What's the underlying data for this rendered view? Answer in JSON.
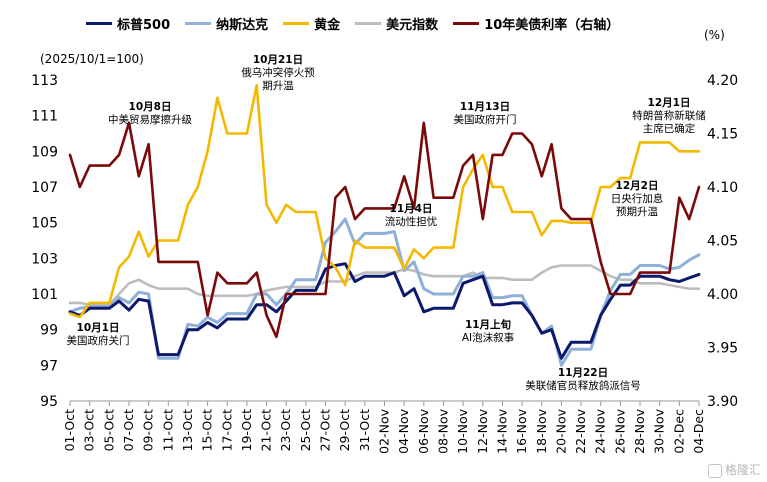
{
  "legend": {
    "series": [
      {
        "name": "标普500",
        "color": "#0b1a6b"
      },
      {
        "name": "纳斯达克",
        "color": "#8fb0d8"
      },
      {
        "name": "黄金",
        "color": "#f5b800"
      },
      {
        "name": "美元指数",
        "color": "#bdbdbd"
      },
      {
        "name": "10年美债利率（右轴）",
        "color": "#7a0a0a"
      }
    ]
  },
  "units": {
    "left": "(2025/10/1=100)",
    "right": "(%)"
  },
  "watermark": {
    "text": "格隆汇",
    "icon": "gelonghui-logo-icon"
  },
  "chart_data": {
    "type": "line",
    "x_tick_labels": [
      "01-Oct",
      "03-Oct",
      "05-Oct",
      "07-Oct",
      "09-Oct",
      "11-Oct",
      "13-Oct",
      "15-Oct",
      "17-Oct",
      "19-Oct",
      "21-Oct",
      "23-Oct",
      "25-Oct",
      "27-Oct",
      "29-Oct",
      "31-Oct",
      "02-Nov",
      "04-Nov",
      "06-Nov",
      "08-Nov",
      "10-Nov",
      "12-Nov",
      "14-Nov",
      "16-Nov",
      "18-Nov",
      "20-Nov",
      "22-Nov",
      "24-Nov",
      "26-Nov",
      "28-Nov",
      "30-Nov",
      "02-Dec",
      "04-Dec"
    ],
    "x": [
      "2025-10-01",
      "2025-10-02",
      "2025-10-03",
      "2025-10-04",
      "2025-10-05",
      "2025-10-06",
      "2025-10-07",
      "2025-10-08",
      "2025-10-09",
      "2025-10-10",
      "2025-10-11",
      "2025-10-12",
      "2025-10-13",
      "2025-10-14",
      "2025-10-15",
      "2025-10-16",
      "2025-10-17",
      "2025-10-18",
      "2025-10-19",
      "2025-10-20",
      "2025-10-21",
      "2025-10-22",
      "2025-10-23",
      "2025-10-24",
      "2025-10-25",
      "2025-10-26",
      "2025-10-27",
      "2025-10-28",
      "2025-10-29",
      "2025-10-30",
      "2025-10-31",
      "2025-11-01",
      "2025-11-02",
      "2025-11-03",
      "2025-11-04",
      "2025-11-05",
      "2025-11-06",
      "2025-11-07",
      "2025-11-08",
      "2025-11-09",
      "2025-11-10",
      "2025-11-11",
      "2025-11-12",
      "2025-11-13",
      "2025-11-14",
      "2025-11-15",
      "2025-11-16",
      "2025-11-17",
      "2025-11-18",
      "2025-11-19",
      "2025-11-20",
      "2025-11-21",
      "2025-11-22",
      "2025-11-23",
      "2025-11-24",
      "2025-11-25",
      "2025-11-26",
      "2025-11-27",
      "2025-11-28",
      "2025-11-29",
      "2025-11-30",
      "2025-12-01",
      "2025-12-02",
      "2025-12-03",
      "2025-12-04"
    ],
    "left_axis": {
      "ylim": [
        95,
        113
      ],
      "ticks": [
        95,
        97,
        99,
        101,
        103,
        105,
        107,
        109,
        111,
        113
      ]
    },
    "right_axis": {
      "ylim": [
        3.9,
        4.2
      ],
      "ticks": [
        "3.90",
        "3.95",
        "4.00",
        "4.05",
        "4.10",
        "4.15",
        "4.20"
      ]
    },
    "series": [
      {
        "name": "标普500",
        "axis": "left",
        "values": [
          100.0,
          99.8,
          100.2,
          100.2,
          100.2,
          100.6,
          100.1,
          100.7,
          100.6,
          97.6,
          97.6,
          97.6,
          99.0,
          99.0,
          99.4,
          99.1,
          99.6,
          99.6,
          99.6,
          100.4,
          100.4,
          100.0,
          100.6,
          101.2,
          101.2,
          101.2,
          102.4,
          102.6,
          102.7,
          101.7,
          102.0,
          102.0,
          102.0,
          102.2,
          100.9,
          101.3,
          100.0,
          100.2,
          100.2,
          100.2,
          101.6,
          101.8,
          102.0,
          100.4,
          100.4,
          100.5,
          100.5,
          99.8,
          98.8,
          99.0,
          97.4,
          98.3,
          98.3,
          98.3,
          99.8,
          100.7,
          101.5,
          101.5,
          102.0,
          102.0,
          102.0,
          101.8,
          101.7,
          101.9,
          102.1
        ]
      },
      {
        "name": "纳斯达克",
        "axis": "left",
        "values": [
          100.0,
          100.2,
          100.3,
          100.3,
          100.3,
          100.8,
          100.5,
          101.1,
          101.0,
          97.4,
          97.4,
          97.4,
          99.3,
          99.2,
          99.7,
          99.4,
          99.9,
          99.9,
          99.9,
          101.0,
          101.0,
          100.4,
          101.0,
          101.8,
          101.8,
          101.8,
          103.9,
          104.5,
          105.2,
          103.8,
          104.4,
          104.4,
          104.4,
          104.5,
          102.3,
          102.8,
          101.3,
          101.0,
          101.0,
          101.0,
          102.0,
          102.0,
          102.2,
          100.8,
          100.8,
          100.9,
          100.9,
          99.8,
          98.8,
          99.2,
          97.0,
          97.9,
          97.9,
          97.9,
          99.8,
          101.2,
          102.1,
          102.1,
          102.6,
          102.6,
          102.6,
          102.4,
          102.5,
          102.9,
          103.2
        ]
      },
      {
        "name": "黄金",
        "axis": "left",
        "values": [
          99.9,
          99.7,
          100.5,
          100.5,
          100.5,
          102.5,
          103.1,
          104.5,
          103.1,
          104.0,
          104.0,
          104.0,
          106.0,
          107.0,
          109.0,
          112.0,
          110.0,
          110.0,
          110.0,
          112.7,
          106.0,
          105.0,
          106.0,
          105.6,
          105.6,
          105.6,
          103.0,
          102.5,
          101.5,
          104.0,
          103.6,
          103.6,
          103.6,
          103.6,
          102.4,
          103.5,
          103.0,
          103.6,
          103.6,
          103.6,
          107.0,
          108.0,
          108.8,
          107.0,
          107.0,
          105.6,
          105.6,
          105.6,
          104.3,
          105.1,
          105.1,
          105.0,
          105.0,
          105.0,
          107.0,
          107.0,
          107.5,
          107.5,
          109.5,
          109.5,
          109.5,
          109.5,
          109.0,
          109.0,
          109.0
        ]
      },
      {
        "name": "美元指数",
        "axis": "left",
        "values": [
          100.5,
          100.5,
          100.4,
          100.4,
          100.4,
          101.0,
          101.6,
          101.8,
          101.5,
          101.3,
          101.3,
          101.3,
          101.3,
          101.0,
          100.9,
          100.9,
          100.9,
          100.9,
          100.9,
          101.0,
          101.2,
          101.3,
          101.4,
          101.4,
          101.4,
          101.4,
          101.7,
          101.7,
          101.7,
          102.0,
          102.2,
          102.2,
          102.2,
          102.2,
          102.4,
          102.3,
          102.1,
          102.0,
          102.0,
          102.0,
          102.0,
          102.2,
          101.9,
          101.9,
          101.9,
          101.8,
          101.8,
          101.8,
          102.2,
          102.5,
          102.6,
          102.6,
          102.6,
          102.6,
          102.3,
          102.0,
          101.8,
          101.8,
          101.6,
          101.6,
          101.6,
          101.5,
          101.4,
          101.3,
          101.3
        ]
      },
      {
        "name": "10年美债利率（右轴）",
        "axis": "right",
        "values": [
          4.13,
          4.1,
          4.12,
          4.12,
          4.12,
          4.13,
          4.16,
          4.11,
          4.14,
          4.03,
          4.03,
          4.03,
          4.03,
          4.03,
          3.98,
          4.02,
          4.01,
          4.01,
          4.01,
          4.02,
          3.98,
          3.96,
          4.0,
          4.0,
          4.0,
          4.0,
          4.0,
          4.09,
          4.1,
          4.07,
          4.08,
          4.08,
          4.08,
          4.08,
          4.11,
          4.08,
          4.16,
          4.09,
          4.09,
          4.09,
          4.12,
          4.13,
          4.07,
          4.13,
          4.13,
          4.15,
          4.15,
          4.14,
          4.11,
          4.14,
          4.08,
          4.07,
          4.07,
          4.07,
          4.03,
          4.0,
          4.0,
          4.0,
          4.02,
          4.02,
          4.02,
          4.02,
          4.09,
          4.07,
          4.1
        ]
      }
    ],
    "annotations": [
      {
        "lines": [
          "10月8日",
          "中美贸易摩擦升级"
        ]
      },
      {
        "lines": [
          "10月21日",
          "俄乌冲突停火预",
          "期升温"
        ]
      },
      {
        "lines": [
          "10月1日",
          "美国政府关门"
        ]
      },
      {
        "lines": [
          "11月4日",
          "流动性担忧"
        ]
      },
      {
        "lines": [
          "11月13日",
          "美国政府开门"
        ]
      },
      {
        "lines": [
          "11月上旬",
          "AI泡沫叙事"
        ]
      },
      {
        "lines": [
          "11月22日",
          "美联储官员释放鸽派信号"
        ]
      },
      {
        "lines": [
          "12月1日",
          "特朗普称新联储",
          "主席已确定"
        ]
      },
      {
        "lines": [
          "12月2日",
          "日央行加息",
          "预期升温"
        ]
      }
    ]
  }
}
